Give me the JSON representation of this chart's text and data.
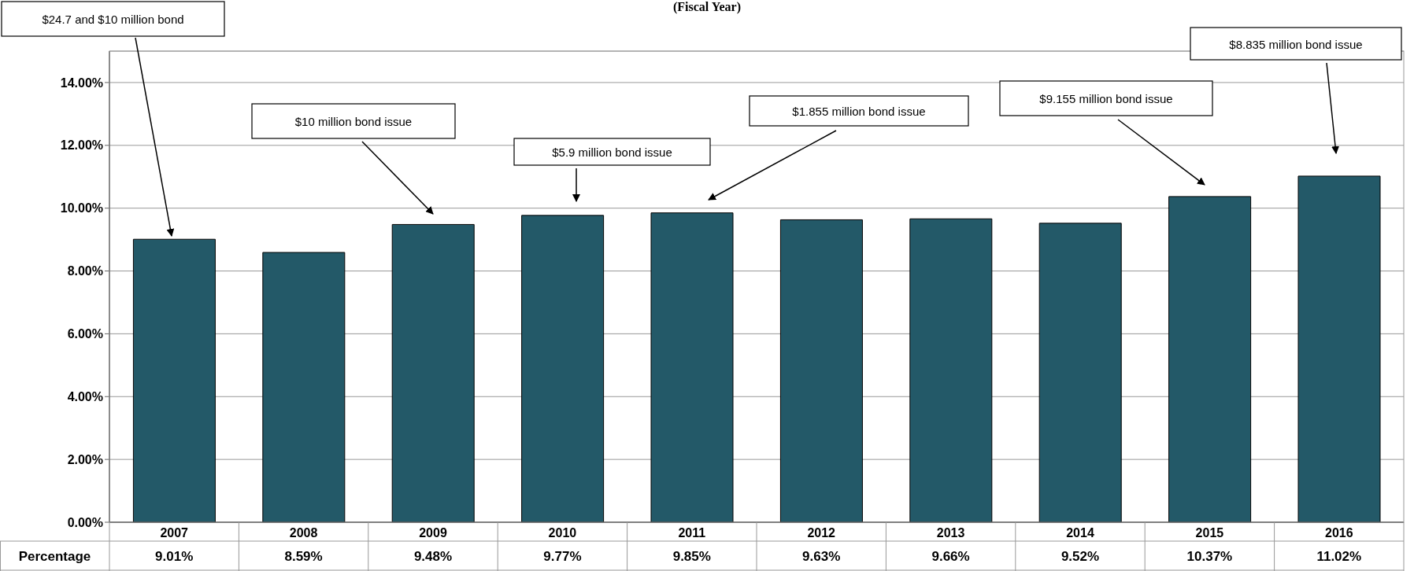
{
  "chart_data": {
    "type": "bar",
    "title": "(Fiscal Year)",
    "categories": [
      "2007",
      "2008",
      "2009",
      "2010",
      "2011",
      "2012",
      "2013",
      "2014",
      "2015",
      "2016"
    ],
    "series": [
      {
        "name": "Percentage",
        "color": "#235968",
        "values": [
          9.01,
          8.59,
          9.48,
          9.77,
          9.85,
          9.63,
          9.66,
          9.52,
          10.37,
          11.02
        ],
        "value_labels": [
          "9.01%",
          "8.59%",
          "9.48%",
          "9.77%",
          "9.85%",
          "9.63%",
          "9.66%",
          "9.52%",
          "10.37%",
          "11.02%"
        ]
      }
    ],
    "ylim": [
      0,
      15
    ],
    "yticks": [
      {
        "value": 0,
        "label": "0.00%"
      },
      {
        "value": 2,
        "label": "2.00%"
      },
      {
        "value": 4,
        "label": "4.00%"
      },
      {
        "value": 6,
        "label": "6.00%"
      },
      {
        "value": 8,
        "label": "8.00%"
      },
      {
        "value": 10,
        "label": "10.00%"
      },
      {
        "value": 12,
        "label": "12.00%"
      },
      {
        "value": 14,
        "label": "14.00%"
      }
    ],
    "grid": "y",
    "annotations": [
      "$24.7 and $10 million bond",
      "$10 million bond issue",
      "$5.9 million bond issue",
      "$1.855 million bond issue",
      "$9.155 million bond issue",
      "$8.835 million bond issue"
    ]
  }
}
